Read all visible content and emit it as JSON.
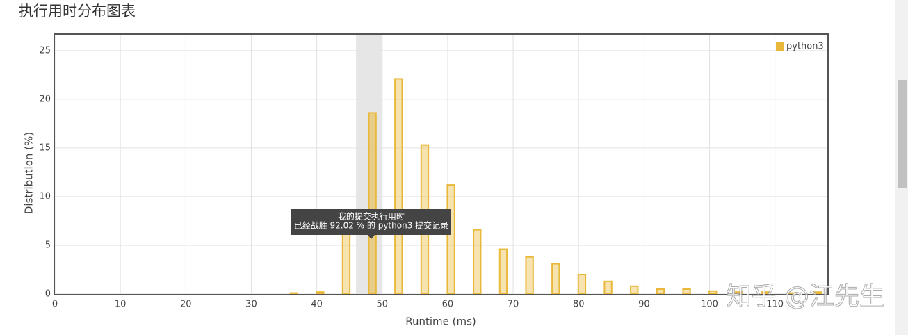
{
  "chart_data": {
    "type": "bar",
    "title": "执行用时分布图表",
    "xlabel": "Runtime (ms)",
    "ylabel": "Distribution (%)",
    "x": [
      36.5,
      40.5,
      44.5,
      48.5,
      52.5,
      56.5,
      60.5,
      64.5,
      68.5,
      72.5,
      76.5,
      80.5,
      84.5,
      88.5,
      92.5,
      96.5,
      100.5,
      104.5,
      108.5,
      112.5,
      116.5
    ],
    "series": [
      {
        "name": "python3",
        "color": "#e8b83a",
        "values": [
          0.1,
          0.2,
          7.5,
          18.6,
          22.1,
          15.3,
          11.2,
          6.6,
          4.6,
          3.8,
          3.1,
          2.0,
          1.3,
          0.8,
          0.5,
          0.5,
          0.3,
          0.2,
          0.2,
          0.1,
          0.2
        ]
      }
    ],
    "xlim": [
      0,
      118
    ],
    "ylim": [
      0,
      26.7
    ],
    "xticks": [
      0,
      10,
      20,
      30,
      40,
      50,
      60,
      70,
      80,
      90,
      100,
      110
    ],
    "yticks": [
      0,
      5,
      10,
      15,
      20,
      25
    ],
    "grid": true,
    "legend": "top-right",
    "highlight_xlim": [
      46,
      50
    ],
    "tooltip": [
      "我的提交执行用时",
      "已经战胜 92.02 % 的 python3 提交记录"
    ],
    "watermark": "知乎 @江先生"
  }
}
